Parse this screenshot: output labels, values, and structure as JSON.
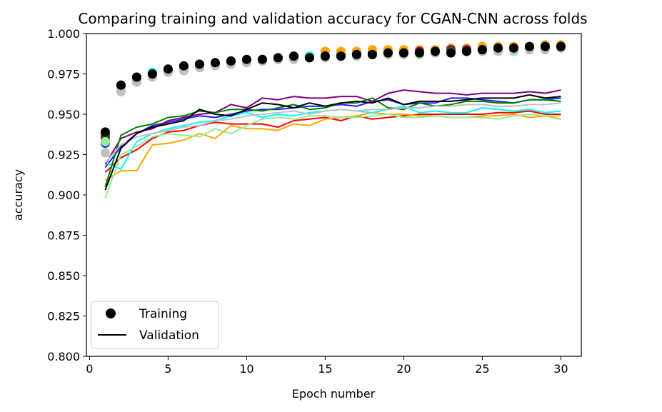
{
  "chart_data": {
    "type": "line",
    "title": "Comparing training and validation accuracy for CGAN-CNN across folds",
    "xlabel": "Epoch number",
    "ylabel": "accuracy",
    "xlim": [
      -0.2,
      31.3
    ],
    "ylim": [
      0.8,
      1.0
    ],
    "x_ticks": [
      0,
      5,
      10,
      15,
      20,
      25,
      30
    ],
    "y_ticks": [
      0.8,
      0.825,
      0.85,
      0.875,
      0.9,
      0.925,
      0.95,
      0.975,
      1.0
    ],
    "y_tick_labels": [
      "0.800",
      "0.825",
      "0.850",
      "0.875",
      "0.900",
      "0.925",
      "0.950",
      "0.975",
      "1.000"
    ],
    "grid": false,
    "legend": {
      "placement": "lower-left",
      "entries": [
        {
          "label": "Training",
          "marker": "circle"
        },
        {
          "label": "Validation",
          "marker": "line"
        }
      ]
    },
    "x": [
      1,
      2,
      3,
      4,
      5,
      6,
      7,
      8,
      9,
      10,
      11,
      12,
      13,
      14,
      15,
      16,
      17,
      18,
      19,
      20,
      21,
      22,
      23,
      24,
      25,
      26,
      27,
      28,
      29,
      30
    ],
    "series": [
      {
        "color": "#1f1fff",
        "training": [
          0.932,
          0.966,
          0.971,
          0.974,
          0.977,
          0.979,
          0.98,
          0.981,
          0.982,
          0.983,
          0.984,
          0.985,
          0.986,
          0.986,
          0.986,
          0.987,
          0.987,
          0.988,
          0.988,
          0.988,
          0.988,
          0.989,
          0.989,
          0.989,
          0.99,
          0.99,
          0.99,
          0.99,
          0.991,
          0.992
        ],
        "validation": [
          0.917,
          0.93,
          0.938,
          0.943,
          0.945,
          0.947,
          0.949,
          0.948,
          0.95,
          0.952,
          0.953,
          0.953,
          0.954,
          0.955,
          0.955,
          0.956,
          0.955,
          0.958,
          0.959,
          0.956,
          0.957,
          0.957,
          0.96,
          0.96,
          0.959,
          0.958,
          0.957,
          0.959,
          0.959,
          0.96
        ]
      },
      {
        "color": "#ff0000",
        "training": [
          0.935,
          0.967,
          0.972,
          0.975,
          0.977,
          0.978,
          0.979,
          0.981,
          0.982,
          0.983,
          0.984,
          0.984,
          0.985,
          0.986,
          0.986,
          0.987,
          0.987,
          0.987,
          0.988,
          0.988,
          0.989,
          0.989,
          0.989,
          0.99,
          0.99,
          0.99,
          0.99,
          0.991,
          0.991,
          0.992
        ],
        "validation": [
          0.914,
          0.923,
          0.928,
          0.935,
          0.939,
          0.94,
          0.943,
          0.945,
          0.944,
          0.944,
          0.944,
          0.942,
          0.946,
          0.947,
          0.948,
          0.946,
          0.949,
          0.947,
          0.948,
          0.949,
          0.95,
          0.95,
          0.95,
          0.95,
          0.95,
          0.951,
          0.951,
          0.952,
          0.95,
          0.95
        ]
      },
      {
        "color": "#ffa500",
        "training": [
          0.937,
          0.968,
          0.973,
          0.975,
          0.977,
          0.979,
          0.98,
          0.981,
          0.982,
          0.983,
          0.984,
          0.985,
          0.986,
          0.986,
          0.989,
          0.989,
          0.989,
          0.99,
          0.99,
          0.99,
          0.99,
          0.99,
          0.991,
          0.991,
          0.992,
          0.992,
          0.992,
          0.992,
          0.993,
          0.993
        ],
        "validation": [
          0.909,
          0.915,
          0.915,
          0.931,
          0.932,
          0.934,
          0.938,
          0.935,
          0.943,
          0.941,
          0.941,
          0.94,
          0.944,
          0.943,
          0.947,
          0.948,
          0.949,
          0.951,
          0.95,
          0.95,
          0.949,
          0.949,
          0.948,
          0.948,
          0.949,
          0.949,
          0.95,
          0.948,
          0.949,
          0.947
        ]
      },
      {
        "color": "#00ffff",
        "training": [
          0.938,
          0.967,
          0.973,
          0.976,
          0.978,
          0.979,
          0.98,
          0.981,
          0.982,
          0.983,
          0.984,
          0.984,
          0.985,
          0.986,
          0.986,
          0.986,
          0.987,
          0.987,
          0.988,
          0.988,
          0.988,
          0.988,
          0.989,
          0.989,
          0.989,
          0.989,
          0.99,
          0.99,
          0.991,
          0.991
        ],
        "validation": [
          0.92,
          0.916,
          0.933,
          0.938,
          0.941,
          0.943,
          0.945,
          0.946,
          0.949,
          0.951,
          0.948,
          0.95,
          0.949,
          0.951,
          0.952,
          0.953,
          0.952,
          0.951,
          0.953,
          0.955,
          0.951,
          0.952,
          0.951,
          0.951,
          0.954,
          0.953,
          0.952,
          0.953,
          0.951,
          0.952
        ]
      },
      {
        "color": "#800080",
        "training": [
          0.936,
          0.967,
          0.97,
          0.974,
          0.976,
          0.978,
          0.98,
          0.981,
          0.981,
          0.982,
          0.983,
          0.984,
          0.985,
          0.985,
          0.986,
          0.986,
          0.987,
          0.987,
          0.988,
          0.988,
          0.989,
          0.989,
          0.99,
          0.99,
          0.99,
          0.99,
          0.991,
          0.991,
          0.991,
          0.992
        ],
        "validation": [
          0.919,
          0.935,
          0.939,
          0.941,
          0.946,
          0.948,
          0.95,
          0.951,
          0.956,
          0.954,
          0.96,
          0.959,
          0.961,
          0.96,
          0.96,
          0.961,
          0.961,
          0.958,
          0.963,
          0.965,
          0.964,
          0.963,
          0.963,
          0.962,
          0.963,
          0.963,
          0.963,
          0.964,
          0.963,
          0.965
        ]
      },
      {
        "color": "#008000",
        "training": [
          0.938,
          0.968,
          0.972,
          0.975,
          0.977,
          0.979,
          0.98,
          0.981,
          0.982,
          0.983,
          0.983,
          0.984,
          0.985,
          0.985,
          0.986,
          0.986,
          0.986,
          0.987,
          0.987,
          0.988,
          0.988,
          0.988,
          0.989,
          0.989,
          0.989,
          0.99,
          0.99,
          0.99,
          0.991,
          0.991
        ],
        "validation": [
          0.905,
          0.937,
          0.942,
          0.944,
          0.948,
          0.949,
          0.952,
          0.951,
          0.953,
          0.953,
          0.952,
          0.954,
          0.956,
          0.953,
          0.954,
          0.957,
          0.957,
          0.96,
          0.954,
          0.953,
          0.957,
          0.955,
          0.956,
          0.958,
          0.958,
          0.957,
          0.957,
          0.959,
          0.959,
          0.958
        ]
      },
      {
        "color": "#90ee90",
        "training": [
          0.933,
          0.966,
          0.971,
          0.974,
          0.976,
          0.978,
          0.98,
          0.98,
          0.981,
          0.982,
          0.983,
          0.984,
          0.984,
          0.985,
          0.985,
          0.986,
          0.986,
          0.987,
          0.987,
          0.987,
          0.987,
          0.988,
          0.988,
          0.989,
          0.989,
          0.989,
          0.989,
          0.99,
          0.991,
          0.991
        ],
        "validation": [
          0.898,
          0.925,
          0.93,
          0.936,
          0.938,
          0.937,
          0.936,
          0.941,
          0.938,
          0.943,
          0.947,
          0.948,
          0.947,
          0.949,
          0.949,
          0.948,
          0.948,
          0.949,
          0.95,
          0.948,
          0.948,
          0.949,
          0.948,
          0.948,
          0.948,
          0.947,
          0.949,
          0.95,
          0.949,
          0.949
        ]
      },
      {
        "color": "#c0c0c0",
        "training": [
          0.926,
          0.964,
          0.97,
          0.973,
          0.976,
          0.977,
          0.979,
          0.98,
          0.981,
          0.982,
          0.983,
          0.984,
          0.984,
          0.985,
          0.985,
          0.986,
          0.986,
          0.987,
          0.987,
          0.987,
          0.988,
          0.988,
          0.988,
          0.989,
          0.989,
          0.989,
          0.99,
          0.99,
          0.99,
          0.991
        ],
        "validation": [
          0.92,
          0.931,
          0.936,
          0.938,
          0.94,
          0.942,
          0.943,
          0.946,
          0.947,
          0.949,
          0.95,
          0.951,
          0.952,
          0.95,
          0.952,
          0.953,
          0.952,
          0.953,
          0.953,
          0.954,
          0.954,
          0.955,
          0.955,
          0.956,
          0.956,
          0.955,
          0.955,
          0.956,
          0.956,
          0.957
        ]
      },
      {
        "color": "#000000",
        "training": [
          0.939,
          0.968,
          0.973,
          0.975,
          0.978,
          0.98,
          0.981,
          0.982,
          0.983,
          0.984,
          0.984,
          0.985,
          0.986,
          0.985,
          0.986,
          0.986,
          0.987,
          0.987,
          0.988,
          0.988,
          0.988,
          0.989,
          0.988,
          0.989,
          0.99,
          0.991,
          0.991,
          0.992,
          0.992,
          0.992
        ],
        "validation": [
          0.903,
          0.929,
          0.938,
          0.942,
          0.944,
          0.946,
          0.953,
          0.95,
          0.949,
          0.953,
          0.957,
          0.956,
          0.954,
          0.957,
          0.955,
          0.957,
          0.958,
          0.957,
          0.96,
          0.956,
          0.958,
          0.958,
          0.958,
          0.959,
          0.96,
          0.96,
          0.96,
          0.962,
          0.96,
          0.961
        ]
      }
    ]
  }
}
